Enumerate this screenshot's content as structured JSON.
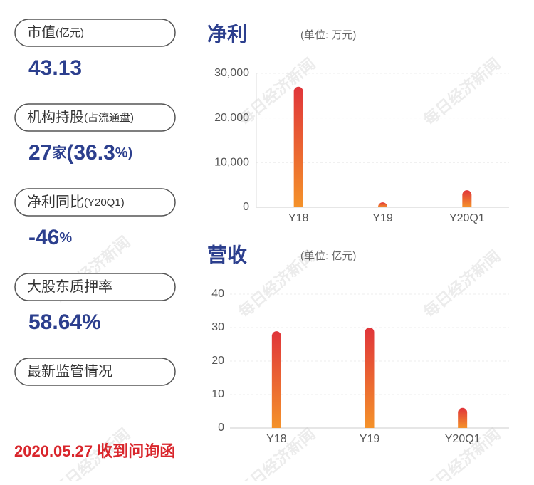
{
  "watermark": "每日经济新闻",
  "panels": [
    {
      "label": [
        "市值",
        "(亿元)"
      ],
      "value": [
        "43.13"
      ]
    },
    {
      "label": [
        "机构持股",
        "(占流通盘)"
      ],
      "value": [
        "27",
        "家",
        "(36.3",
        "%)"
      ]
    },
    {
      "label": [
        "净利同比",
        "(Y20Q1)"
      ],
      "value": [
        "-46",
        "%"
      ]
    },
    {
      "label": [
        "大股东质押率"
      ],
      "value": [
        "58.64%"
      ]
    },
    {
      "label": [
        "最新监管情况"
      ]
    }
  ],
  "footer": "2020.05.27 收到问询函",
  "chart_data": [
    {
      "type": "bar",
      "title": "净利",
      "subtitle": "(单位: 万元)",
      "categories": [
        "Y18",
        "Y19",
        "Y20Q1"
      ],
      "values": [
        27000,
        1100,
        3800
      ],
      "colors": [
        "#e0353a",
        "#f4922a"
      ],
      "ylim": [
        0,
        30000
      ],
      "yticks": [
        0,
        {
          "value": 10000,
          "label": "10,000"
        },
        {
          "value": 20000,
          "label": "20,000"
        },
        {
          "value": 30000,
          "label": "30,000"
        }
      ],
      "grid": true
    },
    {
      "type": "bar",
      "title": "营收",
      "subtitle": "(单位: 亿元)",
      "categories": [
        "Y18",
        "Y19",
        "Y20Q1"
      ],
      "values": [
        28.9,
        30,
        6
      ],
      "colors": [
        "#e0353a",
        "#f4922a"
      ],
      "ylim": [
        0,
        40
      ],
      "yticks": [
        0,
        10,
        20,
        30,
        40
      ],
      "grid": true
    }
  ]
}
